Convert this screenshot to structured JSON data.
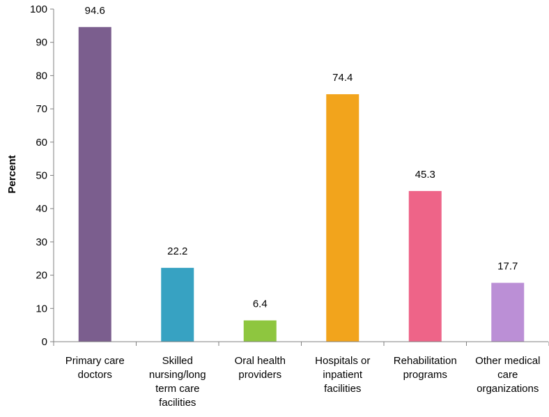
{
  "chart_data": {
    "type": "bar",
    "title": "",
    "xlabel": "",
    "ylabel": "Percent",
    "ylim": [
      0,
      100
    ],
    "yticks": [
      0,
      10,
      20,
      30,
      40,
      50,
      60,
      70,
      80,
      90,
      100
    ],
    "grid": false,
    "legend": "none",
    "categories": [
      [
        "Primary care",
        "doctors"
      ],
      [
        "Skilled",
        "nursing/long",
        "term care",
        "facilities"
      ],
      [
        "Oral health",
        "providers"
      ],
      [
        "Hospitals or",
        "inpatient",
        "facilities"
      ],
      [
        "Rehabilitation",
        "programs"
      ],
      [
        "Other medical",
        "care",
        "organizations"
      ]
    ],
    "values": [
      94.6,
      22.2,
      6.4,
      74.4,
      45.3,
      17.7
    ],
    "value_labels": [
      "94.6",
      "22.2",
      "6.4",
      "74.4",
      "45.3",
      "17.7"
    ],
    "colors": [
      "#7b5e8e",
      "#37a2c2",
      "#8ec63f",
      "#f2a41c",
      "#ee6488",
      "#bb8fd6"
    ]
  }
}
